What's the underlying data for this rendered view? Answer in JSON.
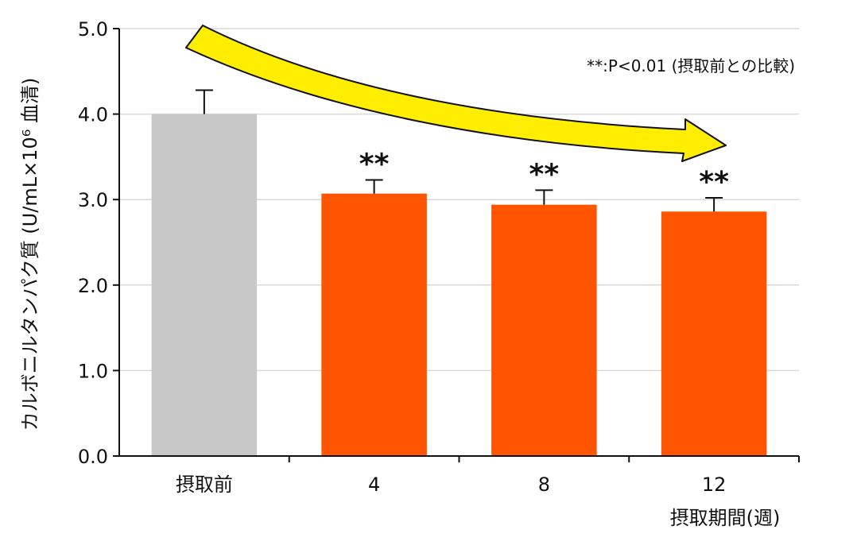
{
  "chart_data": {
    "type": "bar",
    "categories": [
      "摂取前",
      "4",
      "8",
      "12"
    ],
    "values": [
      4.0,
      3.07,
      2.94,
      2.86
    ],
    "error_upper": [
      4.28,
      3.23,
      3.11,
      3.02
    ],
    "significance": [
      "",
      "**",
      "**",
      "**"
    ],
    "bar_colors": [
      "#c8c8c8",
      "#ff5500",
      "#ff5500",
      "#ff5500"
    ],
    "ylabel": "カルボニルタンパク質 (U/mL×10⁶ 血清)",
    "xlabel": "摂取期間(週)",
    "yticks": [
      "0.0",
      "1.0",
      "2.0",
      "3.0",
      "4.0",
      "5.0"
    ],
    "ylim": [
      0,
      5
    ],
    "annotation": "**:P<0.01 (摂取前との比較)",
    "grid": true,
    "trend_arrow_color": "#ffee00"
  }
}
